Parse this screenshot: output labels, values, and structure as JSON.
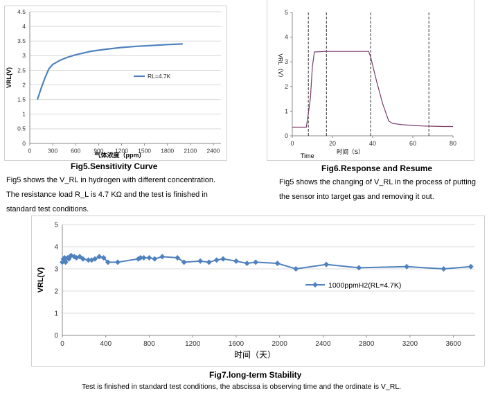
{
  "fig5": {
    "caption": "Fig5.Sensitivity Curve",
    "desc_lines": [
      "Fig5 shows the V_RL in hydrogen with different concentration.",
      "The resistance load R_L is 4.7 KΩ and the test is finished in",
      "standard test conditions."
    ],
    "chart_data": {
      "type": "line",
      "xlabel": "气体浓度（ppm）",
      "ylabel": "VRL(V)",
      "xlim": [
        0,
        2500
      ],
      "ylim": [
        0,
        4.5
      ],
      "x_ticks": [
        "0",
        "300",
        "600",
        "900",
        "1200",
        "1500",
        "1800",
        "2100",
        "2400"
      ],
      "y_ticks": [
        "0",
        "0.5",
        "1",
        "1.5",
        "2",
        "2.5",
        "3",
        "3.5",
        "4",
        "4.5"
      ],
      "series": [
        {
          "name": "RL=4.7K",
          "color": "#4f81bd",
          "x": [
            100,
            150,
            200,
            250,
            300,
            400,
            500,
            600,
            800,
            1000,
            1200,
            1400,
            1600,
            1800,
            2000
          ],
          "y": [
            1.5,
            1.9,
            2.25,
            2.55,
            2.7,
            2.85,
            2.95,
            3.03,
            3.15,
            3.22,
            3.28,
            3.32,
            3.35,
            3.38,
            3.4
          ]
        }
      ]
    }
  },
  "fig6": {
    "caption": "Fig6.Response and Resume",
    "desc_lines": [
      "Fig5 shows the changing of V_RL in the process of putting",
      "the sensor into target gas and removing it out."
    ],
    "chart_data": {
      "type": "line",
      "xlabel": "时间（S）",
      "x_extra_label": "Time",
      "ylabel": "VRL（V）",
      "xlim": [
        0,
        80
      ],
      "ylim": [
        0,
        5
      ],
      "x_ticks": [
        "0",
        "20",
        "40",
        "60",
        "80"
      ],
      "y_ticks": [
        "0",
        "1",
        "2",
        "3",
        "4",
        "5"
      ],
      "markers_x": [
        8,
        17,
        39,
        68
      ],
      "series": [
        {
          "name": "",
          "color": "#7a3b6b",
          "x": [
            0,
            7,
            9,
            10,
            11,
            17,
            38,
            39,
            42,
            45,
            48,
            50,
            55,
            60,
            65,
            70,
            75,
            80
          ],
          "y": [
            0.35,
            0.35,
            1.5,
            2.8,
            3.4,
            3.42,
            3.42,
            3.2,
            2.2,
            1.3,
            0.6,
            0.5,
            0.45,
            0.42,
            0.4,
            0.39,
            0.38,
            0.38
          ]
        }
      ]
    }
  },
  "fig7": {
    "caption": "Fig7.long-term Stability",
    "desc": "Test is finished in standard test conditions, the abscissa is observing time and the ordinate is V_RL.",
    "chart_data": {
      "type": "line",
      "xlabel": "时间（天）",
      "ylabel": "VRL(V)",
      "xlim": [
        0,
        3800
      ],
      "ylim": [
        0,
        5
      ],
      "x_ticks": [
        "0",
        "400",
        "800",
        "1200",
        "1600",
        "2000",
        "2400",
        "2800",
        "3200",
        "3600"
      ],
      "y_ticks": [
        "0",
        "1",
        "2",
        "3",
        "4",
        "5"
      ],
      "series": [
        {
          "name": "1000ppmH2(RL=4.7K)",
          "color": "#4f81bd",
          "x": [
            0,
            10,
            20,
            30,
            50,
            60,
            80,
            110,
            130,
            160,
            190,
            240,
            270,
            300,
            340,
            380,
            420,
            510,
            700,
            720,
            750,
            800,
            850,
            920,
            1060,
            1120,
            1270,
            1350,
            1420,
            1480,
            1600,
            1700,
            1780,
            1980,
            2150,
            2430,
            2730,
            3170,
            3510,
            3760
          ],
          "y": [
            3.3,
            3.45,
            3.5,
            3.3,
            3.5,
            3.45,
            3.6,
            3.55,
            3.5,
            3.55,
            3.45,
            3.4,
            3.4,
            3.45,
            3.55,
            3.5,
            3.3,
            3.3,
            3.45,
            3.5,
            3.5,
            3.5,
            3.45,
            3.55,
            3.5,
            3.3,
            3.35,
            3.3,
            3.4,
            3.45,
            3.35,
            3.25,
            3.3,
            3.25,
            3.0,
            3.2,
            3.05,
            3.1,
            3.0,
            3.1
          ]
        }
      ]
    }
  }
}
